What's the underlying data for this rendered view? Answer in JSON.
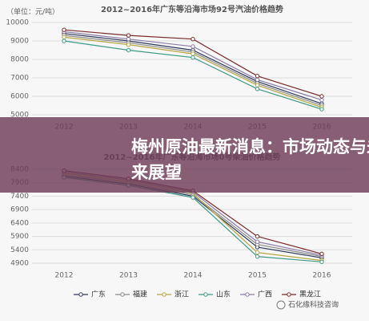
{
  "chart_data": [
    {
      "type": "line",
      "title": "2012~2016年广东等沿海市场92号汽油价格趋势",
      "unit": "（单位：元/吨）",
      "categories": [
        "2012",
        "2013",
        "2014",
        "2015",
        "2016"
      ],
      "ylim": [
        5000,
        10000
      ],
      "yticks": [
        5000,
        6000,
        7000,
        8000,
        9000,
        10000
      ],
      "grid": true,
      "series": [
        {
          "color": "#2e3a5c",
          "values": [
            9400,
            9000,
            8500,
            6800,
            5600
          ]
        },
        {
          "color": "#8a8a8a",
          "values": [
            9300,
            8900,
            8400,
            6700,
            5500
          ]
        },
        {
          "color": "#b5a642",
          "values": [
            9200,
            8800,
            8300,
            6600,
            5400
          ]
        },
        {
          "color": "#3d9a84",
          "values": [
            9000,
            8500,
            8100,
            6400,
            5300
          ]
        },
        {
          "color": "#8c7ca8",
          "values": [
            9500,
            9100,
            8700,
            6900,
            5800
          ]
        },
        {
          "color": "#7a2a2a",
          "values": [
            9600,
            9300,
            9100,
            7100,
            6000
          ]
        }
      ]
    },
    {
      "type": "line",
      "title": "2012~2016年广东等沿海市场0号柴油价格趋势",
      "categories": [
        "2012",
        "2013",
        "2014",
        "2015",
        "2016"
      ],
      "ylim": [
        4900,
        8400
      ],
      "yticks": [
        4900,
        5400,
        5900,
        6400,
        6900,
        7400,
        7900,
        8400
      ],
      "grid": true,
      "series": [
        {
          "name": "广东",
          "color": "#2e3a5c",
          "values": [
            8150,
            7850,
            7400,
            5500,
            5100
          ]
        },
        {
          "name": "福建",
          "color": "#8a8a8a",
          "values": [
            8200,
            7900,
            7450,
            5600,
            5150
          ]
        },
        {
          "name": "浙江",
          "color": "#b5a642",
          "values": [
            8250,
            7950,
            7500,
            5300,
            5000
          ]
        },
        {
          "name": "山东",
          "color": "#3d9a84",
          "values": [
            8100,
            7800,
            7350,
            5150,
            4950
          ]
        },
        {
          "name": "广西",
          "color": "#8c7ca8",
          "values": [
            8300,
            8000,
            7550,
            5700,
            5200
          ]
        },
        {
          "name": "黑龙江",
          "color": "#7a2a2a",
          "values": [
            8350,
            8050,
            7600,
            5900,
            5250
          ]
        }
      ]
    }
  ],
  "banner": {
    "lines": [
      "梅州原油最新消息：市场动态与未来展望"
    ]
  },
  "watermark": "石化缘科技咨询"
}
